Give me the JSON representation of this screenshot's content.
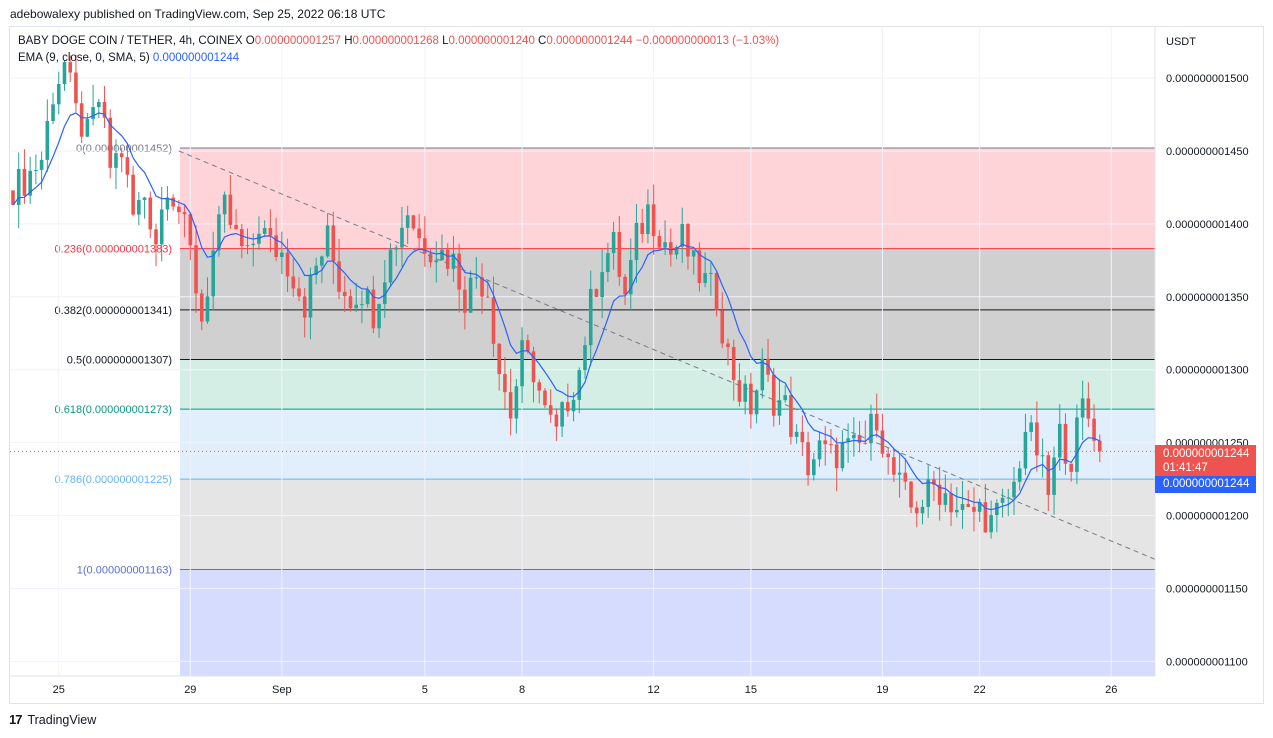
{
  "header": {
    "published_by": "adebowalexy published on TradingView.com, Sep 25, 2022 06:18 UTC"
  },
  "legend": {
    "symbol": "BABY DOGE COIN / TETHER, 4h, COINEX",
    "o_label": "O",
    "o_value": "0.000000001257",
    "h_label": "H",
    "h_value": "0.000000001268",
    "l_label": "L",
    "l_value": "0.000000001240",
    "c_label": "C",
    "c_value": "0.000000001244",
    "change": "−0.000000000013 (−1.03%)",
    "ema_label": "EMA (9, close, 0, SMA, 5)",
    "ema_value": "0.000000001244"
  },
  "price_axis": {
    "currency": "USDT",
    "current_price_tag": "0.000000001244",
    "countdown": "01:41:47",
    "ema_tag": "0.000000001244"
  },
  "footer": {
    "brand": "TradingView"
  },
  "colors": {
    "up": "#26a69a",
    "down": "#ef5350",
    "ema": "#2962ff",
    "fib_0_236": "#ffcdd2",
    "fib_236_382": "#c8c8c8",
    "fib_382_5": "#c8c8c8",
    "fib_5_618": "#ccebe2",
    "fib_618_786": "#dcebfa",
    "fib_786_1": "#e0e0e0",
    "fib_below_1": "#d0d8fe"
  },
  "chart_data": {
    "type": "candlestick",
    "title": "BABY DOGE COIN / TETHER, 4h, COINEX",
    "y_range": [
      1.09e-09,
      1.535e-09
    ],
    "y_ticks": [
      {
        "v": 1.5e-09,
        "label": "0.000000001500"
      },
      {
        "v": 1.45e-09,
        "label": "0.000000001450"
      },
      {
        "v": 1.4e-09,
        "label": "0.000000001400"
      },
      {
        "v": 1.35e-09,
        "label": "0.000000001350"
      },
      {
        "v": 1.3e-09,
        "label": "0.000000001300"
      },
      {
        "v": 1.25e-09,
        "label": "0.000000001250"
      },
      {
        "v": 1.2e-09,
        "label": "0.000000001200"
      },
      {
        "v": 1.15e-09,
        "label": "0.000000001150"
      },
      {
        "v": 1.1e-09,
        "label": "0.000000001100"
      }
    ],
    "x_ticks": [
      {
        "i": 8,
        "label": "25"
      },
      {
        "i": 31,
        "label": "29"
      },
      {
        "i": 47,
        "label": "Sep"
      },
      {
        "i": 72,
        "label": "5"
      },
      {
        "i": 89,
        "label": "8"
      },
      {
        "i": 112,
        "label": "12"
      },
      {
        "i": 129,
        "label": "15"
      },
      {
        "i": 152,
        "label": "19"
      },
      {
        "i": 169,
        "label": "22"
      },
      {
        "i": 192,
        "label": "26"
      }
    ],
    "fib_levels": [
      {
        "ratio": "0",
        "label": "0(0.000000001452)",
        "value": 1.452e-09,
        "line": "#787b86"
      },
      {
        "ratio": "0.236",
        "label": "0.236(0.000000001383)",
        "value": 1.383e-09,
        "line": "#f23645"
      },
      {
        "ratio": "0.382",
        "label": "0.382(0.000000001341)",
        "value": 1.341e-09,
        "line": "#131722"
      },
      {
        "ratio": "0.5",
        "label": "0.5(0.000000001307)",
        "value": 1.307e-09,
        "line": "#131722"
      },
      {
        "ratio": "0.618",
        "label": "0.618(0.000000001273)",
        "value": 1.273e-09,
        "line": "#089981"
      },
      {
        "ratio": "0.786",
        "label": "0.786(0.000000001225)",
        "value": 1.225e-09,
        "line": "#64b5f6"
      },
      {
        "ratio": "1",
        "label": "1(0.000000001163)",
        "value": 1.163e-09,
        "line": "#5b6fd6"
      }
    ],
    "last_close": 1.244e-09,
    "ema_last": 1.244e-09,
    "anchors_close": [
      [
        0,
        1.425e-09
      ],
      [
        2,
        1.43e-09
      ],
      [
        5,
        1.445e-09
      ],
      [
        7,
        1.49e-09
      ],
      [
        9,
        1.51e-09
      ],
      [
        11,
        1.475e-09
      ],
      [
        13,
        1.46e-09
      ],
      [
        15,
        1.485e-09
      ],
      [
        17,
        1.44e-09
      ],
      [
        19,
        1.45e-09
      ],
      [
        21,
        1.405e-09
      ],
      [
        23,
        1.42e-09
      ],
      [
        25,
        1.39e-09
      ],
      [
        27,
        1.43e-09
      ],
      [
        29,
        1.41e-09
      ],
      [
        31,
        1.38e-09
      ],
      [
        33,
        1.335e-09
      ],
      [
        35,
        1.38e-09
      ],
      [
        37,
        1.41e-09
      ],
      [
        39,
        1.39e-09
      ],
      [
        41,
        1.375e-09
      ],
      [
        43,
        1.4e-09
      ],
      [
        45,
        1.385e-09
      ],
      [
        47,
        1.38e-09
      ],
      [
        49,
        1.365e-09
      ],
      [
        51,
        1.345e-09
      ],
      [
        53,
        1.37e-09
      ],
      [
        55,
        1.39e-09
      ],
      [
        57,
        1.36e-09
      ],
      [
        59,
        1.35e-09
      ],
      [
        61,
        1.355e-09
      ],
      [
        63,
        1.34e-09
      ],
      [
        65,
        1.37e-09
      ],
      [
        67,
        1.39e-09
      ],
      [
        69,
        1.41e-09
      ],
      [
        71,
        1.39e-09
      ],
      [
        73,
        1.385e-09
      ],
      [
        75,
        1.38e-09
      ],
      [
        77,
        1.375e-09
      ],
      [
        79,
        1.35e-09
      ],
      [
        81,
        1.365e-09
      ],
      [
        83,
        1.355e-09
      ],
      [
        85,
        1.3e-09
      ],
      [
        87,
        1.27e-09
      ],
      [
        89,
        1.31e-09
      ],
      [
        91,
        1.3e-09
      ],
      [
        93,
        1.27e-09
      ],
      [
        95,
        1.255e-09
      ],
      [
        97,
        1.28e-09
      ],
      [
        99,
        1.3e-09
      ],
      [
        101,
        1.345e-09
      ],
      [
        103,
        1.375e-09
      ],
      [
        105,
        1.385e-09
      ],
      [
        107,
        1.35e-09
      ],
      [
        109,
        1.39e-09
      ],
      [
        111,
        1.41e-09
      ],
      [
        113,
        1.395e-09
      ],
      [
        115,
        1.38e-09
      ],
      [
        117,
        1.39e-09
      ],
      [
        119,
        1.37e-09
      ],
      [
        121,
        1.36e-09
      ],
      [
        123,
        1.35e-09
      ],
      [
        125,
        1.31e-09
      ],
      [
        127,
        1.285e-09
      ],
      [
        129,
        1.275e-09
      ],
      [
        131,
        1.3e-09
      ],
      [
        133,
        1.28e-09
      ],
      [
        135,
        1.275e-09
      ],
      [
        137,
        1.25e-09
      ],
      [
        139,
        1.235e-09
      ],
      [
        141,
        1.245e-09
      ],
      [
        143,
        1.24e-09
      ],
      [
        145,
        1.245e-09
      ],
      [
        147,
        1.245e-09
      ],
      [
        149,
        1.25e-09
      ],
      [
        151,
        1.27e-09
      ],
      [
        153,
        1.235e-09
      ],
      [
        155,
        1.22e-09
      ],
      [
        157,
        1.205e-09
      ],
      [
        159,
        1.21e-09
      ],
      [
        161,
        1.22e-09
      ],
      [
        163,
        1.215e-09
      ],
      [
        165,
        1.205e-09
      ],
      [
        167,
        1.2e-09
      ],
      [
        169,
        1.205e-09
      ],
      [
        171,
        1.195e-09
      ],
      [
        173,
        1.205e-09
      ],
      [
        175,
        1.22e-09
      ],
      [
        177,
        1.26e-09
      ],
      [
        179,
        1.245e-09
      ],
      [
        181,
        1.215e-09
      ],
      [
        183,
        1.255e-09
      ],
      [
        185,
        1.24e-09
      ],
      [
        187,
        1.275e-09
      ],
      [
        189,
        1.26e-09
      ],
      [
        190,
        1.244e-09
      ]
    ]
  }
}
